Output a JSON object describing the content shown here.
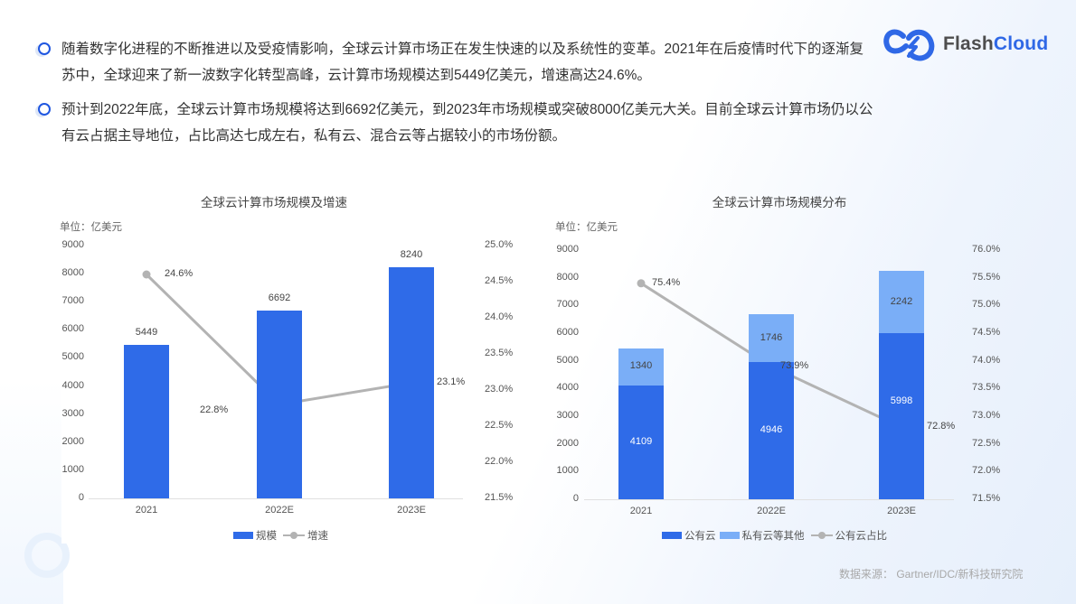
{
  "bullets": [
    "随着数字化进程的不断推进以及受疫情影响，全球云计算市场正在发生快速的以及系统性的变革。2021年在后疫情时代下的逐渐复苏中，全球迎来了新一波数字化转型高峰，云计算市场规模达到5449亿美元，增速高达24.6%。",
    "预计到2022年底，全球云计算市场规模将达到6692亿美元，到2023年市场规模或突破8000亿美元大关。目前全球云计算市场仍以公有云占据主导地位，占比高达七成左右，私有云、混合云等占据较小的市场份额。"
  ],
  "logo": {
    "text_a": "Flash",
    "text_b": "Cloud",
    "icon": "cloud-lightning-logo-icon"
  },
  "colors": {
    "primary": "#2f6be8",
    "light": "#7aaef7",
    "line": "#b3b3b3",
    "bullet": "#1f56e0"
  },
  "chart_data": [
    {
      "type": "bar+line",
      "title": "全球云计算市场规模及增速",
      "unit_label": "单位：亿美元",
      "categories": [
        "2021",
        "2022E",
        "2023E"
      ],
      "y_left": {
        "ticks": [
          "0",
          "1000",
          "2000",
          "3000",
          "4000",
          "5000",
          "6000",
          "7000",
          "8000",
          "9000"
        ],
        "range": [
          0,
          9000
        ]
      },
      "y_right": {
        "ticks": [
          "21.5%",
          "22.0%",
          "22.5%",
          "23.0%",
          "23.5%",
          "24.0%",
          "24.5%",
          "25.0%"
        ],
        "range": [
          21.5,
          25.0
        ]
      },
      "series": [
        {
          "name": "规模",
          "type": "bar",
          "values": [
            5449,
            6692,
            8240
          ],
          "labels": [
            "5449",
            "6692",
            "8240"
          ]
        },
        {
          "name": "增速",
          "type": "line",
          "axis": "right",
          "values": [
            24.6,
            22.8,
            23.1
          ],
          "labels": [
            "24.6%",
            "22.8%",
            "23.1%"
          ]
        }
      ],
      "legend": [
        "规模",
        "增速"
      ],
      "legend_position": "bottom"
    },
    {
      "type": "stacked-bar+line",
      "title": "全球云计算市场规模分布",
      "unit_label": "单位：亿美元",
      "categories": [
        "2021",
        "2022E",
        "2023E"
      ],
      "y_left": {
        "ticks": [
          "0",
          "1000",
          "2000",
          "3000",
          "4000",
          "5000",
          "6000",
          "7000",
          "8000",
          "9000"
        ],
        "range": [
          0,
          9000
        ]
      },
      "y_right": {
        "ticks": [
          "71.5%",
          "72.0%",
          "72.5%",
          "73.0%",
          "73.5%",
          "74.0%",
          "74.5%",
          "75.0%",
          "75.5%",
          "76.0%"
        ],
        "range": [
          71.5,
          76.0
        ]
      },
      "series": [
        {
          "name": "公有云",
          "type": "bar",
          "stack": "total",
          "values": [
            4109,
            4946,
            5998
          ],
          "labels": [
            "4109",
            "4946",
            "5998"
          ]
        },
        {
          "name": "私有云等其他",
          "type": "bar",
          "stack": "total",
          "values": [
            1340,
            1746,
            2242
          ],
          "labels": [
            "1340",
            "1746",
            "2242"
          ]
        },
        {
          "name": "公有云占比",
          "type": "line",
          "axis": "right",
          "values": [
            75.4,
            73.9,
            72.8
          ],
          "labels": [
            "75.4%",
            "73.9%",
            "72.8%"
          ]
        }
      ],
      "legend": [
        "公有云",
        "私有云等其他",
        "公有云占比"
      ],
      "legend_position": "bottom"
    }
  ],
  "source": "数据来源： Gartner/IDC/新科技研究院"
}
